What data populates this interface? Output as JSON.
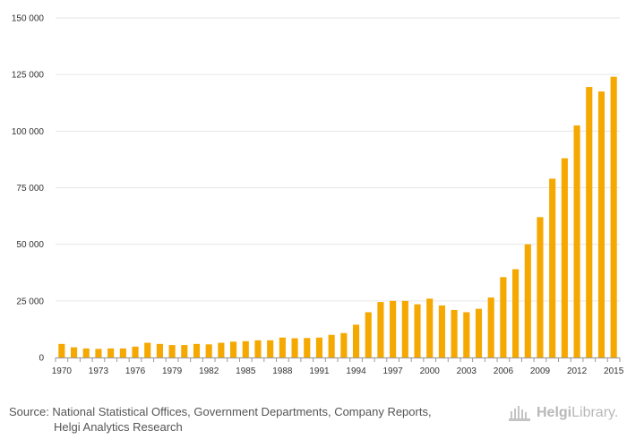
{
  "chart_data": {
    "type": "bar",
    "title": "",
    "xlabel": "",
    "ylabel": "",
    "ylim": [
      0,
      150000
    ],
    "y_ticks": [
      0,
      25000,
      50000,
      75000,
      100000,
      125000,
      150000
    ],
    "y_tick_labels": [
      "0",
      "25 000",
      "50 000",
      "75 000",
      "100 000",
      "125 000",
      "150 000"
    ],
    "categories": [
      "1970",
      "1971",
      "1972",
      "1973",
      "1974",
      "1975",
      "1976",
      "1977",
      "1978",
      "1979",
      "1980",
      "1981",
      "1982",
      "1983",
      "1984",
      "1985",
      "1986",
      "1987",
      "1988",
      "1989",
      "1990",
      "1991",
      "1992",
      "1993",
      "1994",
      "1995",
      "1996",
      "1997",
      "1998",
      "1999",
      "2000",
      "2001",
      "2002",
      "2003",
      "2004",
      "2005",
      "2006",
      "2007",
      "2008",
      "2009",
      "2010",
      "2011",
      "2012",
      "2013",
      "2014",
      "2015"
    ],
    "x_tick_labels": [
      "1970",
      "1973",
      "1976",
      "1979",
      "1982",
      "1985",
      "1988",
      "1991",
      "1994",
      "1997",
      "2000",
      "2003",
      "2006",
      "2009",
      "2012",
      "2015"
    ],
    "values": [
      6000,
      4500,
      4000,
      3800,
      4000,
      4000,
      4800,
      6500,
      6000,
      5500,
      5500,
      6000,
      5800,
      6500,
      7000,
      7200,
      7600,
      7600,
      8800,
      8500,
      8600,
      8800,
      10000,
      10800,
      14500,
      20000,
      24500,
      25000,
      25000,
      23500,
      26000,
      23000,
      21000,
      20000,
      21500,
      26500,
      35500,
      39000,
      50000,
      62000,
      79000,
      88000,
      102500,
      119500,
      117500,
      124000
    ],
    "bar_color": "#f5a800",
    "grid": true
  },
  "footer": {
    "source_line1": "Source: National Statistical Offices, Government Departments, Company Reports,",
    "source_line2": "Helgi Analytics Research",
    "logo_text_a": "Helgi",
    "logo_text_b": "Library."
  }
}
